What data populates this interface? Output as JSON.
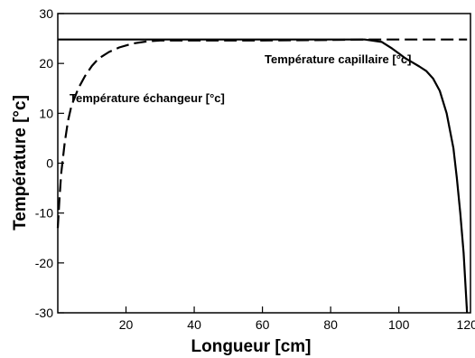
{
  "chart_data": {
    "type": "line",
    "xlabel": "Longueur [cm]",
    "ylabel": "Température [°c]",
    "xlim": [
      0,
      121
    ],
    "ylim": [
      -30,
      30
    ],
    "x_ticks": [
      20,
      40,
      60,
      80,
      100,
      120
    ],
    "y_ticks": [
      -30,
      -20,
      -10,
      0,
      10,
      20,
      30
    ],
    "grid": false,
    "annotations": [
      "Température capillaire [°c]",
      "Température échangeur [°c]"
    ],
    "series": [
      {
        "style": "solid",
        "x": [
          0,
          10,
          20,
          40,
          60,
          80,
          90,
          95,
          98,
          100,
          102,
          104,
          106,
          108,
          110,
          112,
          114,
          116,
          117,
          118,
          119,
          119.5,
          120
        ],
        "y": [
          24.8,
          24.8,
          24.8,
          24.8,
          24.8,
          24.8,
          24.8,
          24.3,
          23.0,
          22.0,
          21.0,
          20.2,
          19.4,
          18.5,
          17.0,
          14.5,
          10.0,
          3.0,
          -3.0,
          -10.0,
          -18.0,
          -24.0,
          -30.0
        ]
      },
      {
        "style": "dashed",
        "x": [
          0,
          0.5,
          1,
          2,
          3,
          4,
          6,
          8,
          10,
          12,
          15,
          18,
          22,
          26,
          30,
          40,
          60,
          80,
          90,
          100,
          110,
          120
        ],
        "y": [
          -13.0,
          -7.0,
          -2.0,
          4.0,
          8.5,
          11.5,
          15.0,
          17.5,
          19.5,
          21.0,
          22.3,
          23.2,
          24.0,
          24.4,
          24.6,
          24.6,
          24.6,
          24.7,
          24.8,
          24.8,
          24.8,
          24.8
        ]
      }
    ],
    "colors": {
      "line": "#000000",
      "axis": "#000000",
      "background": "#ffffff"
    }
  }
}
